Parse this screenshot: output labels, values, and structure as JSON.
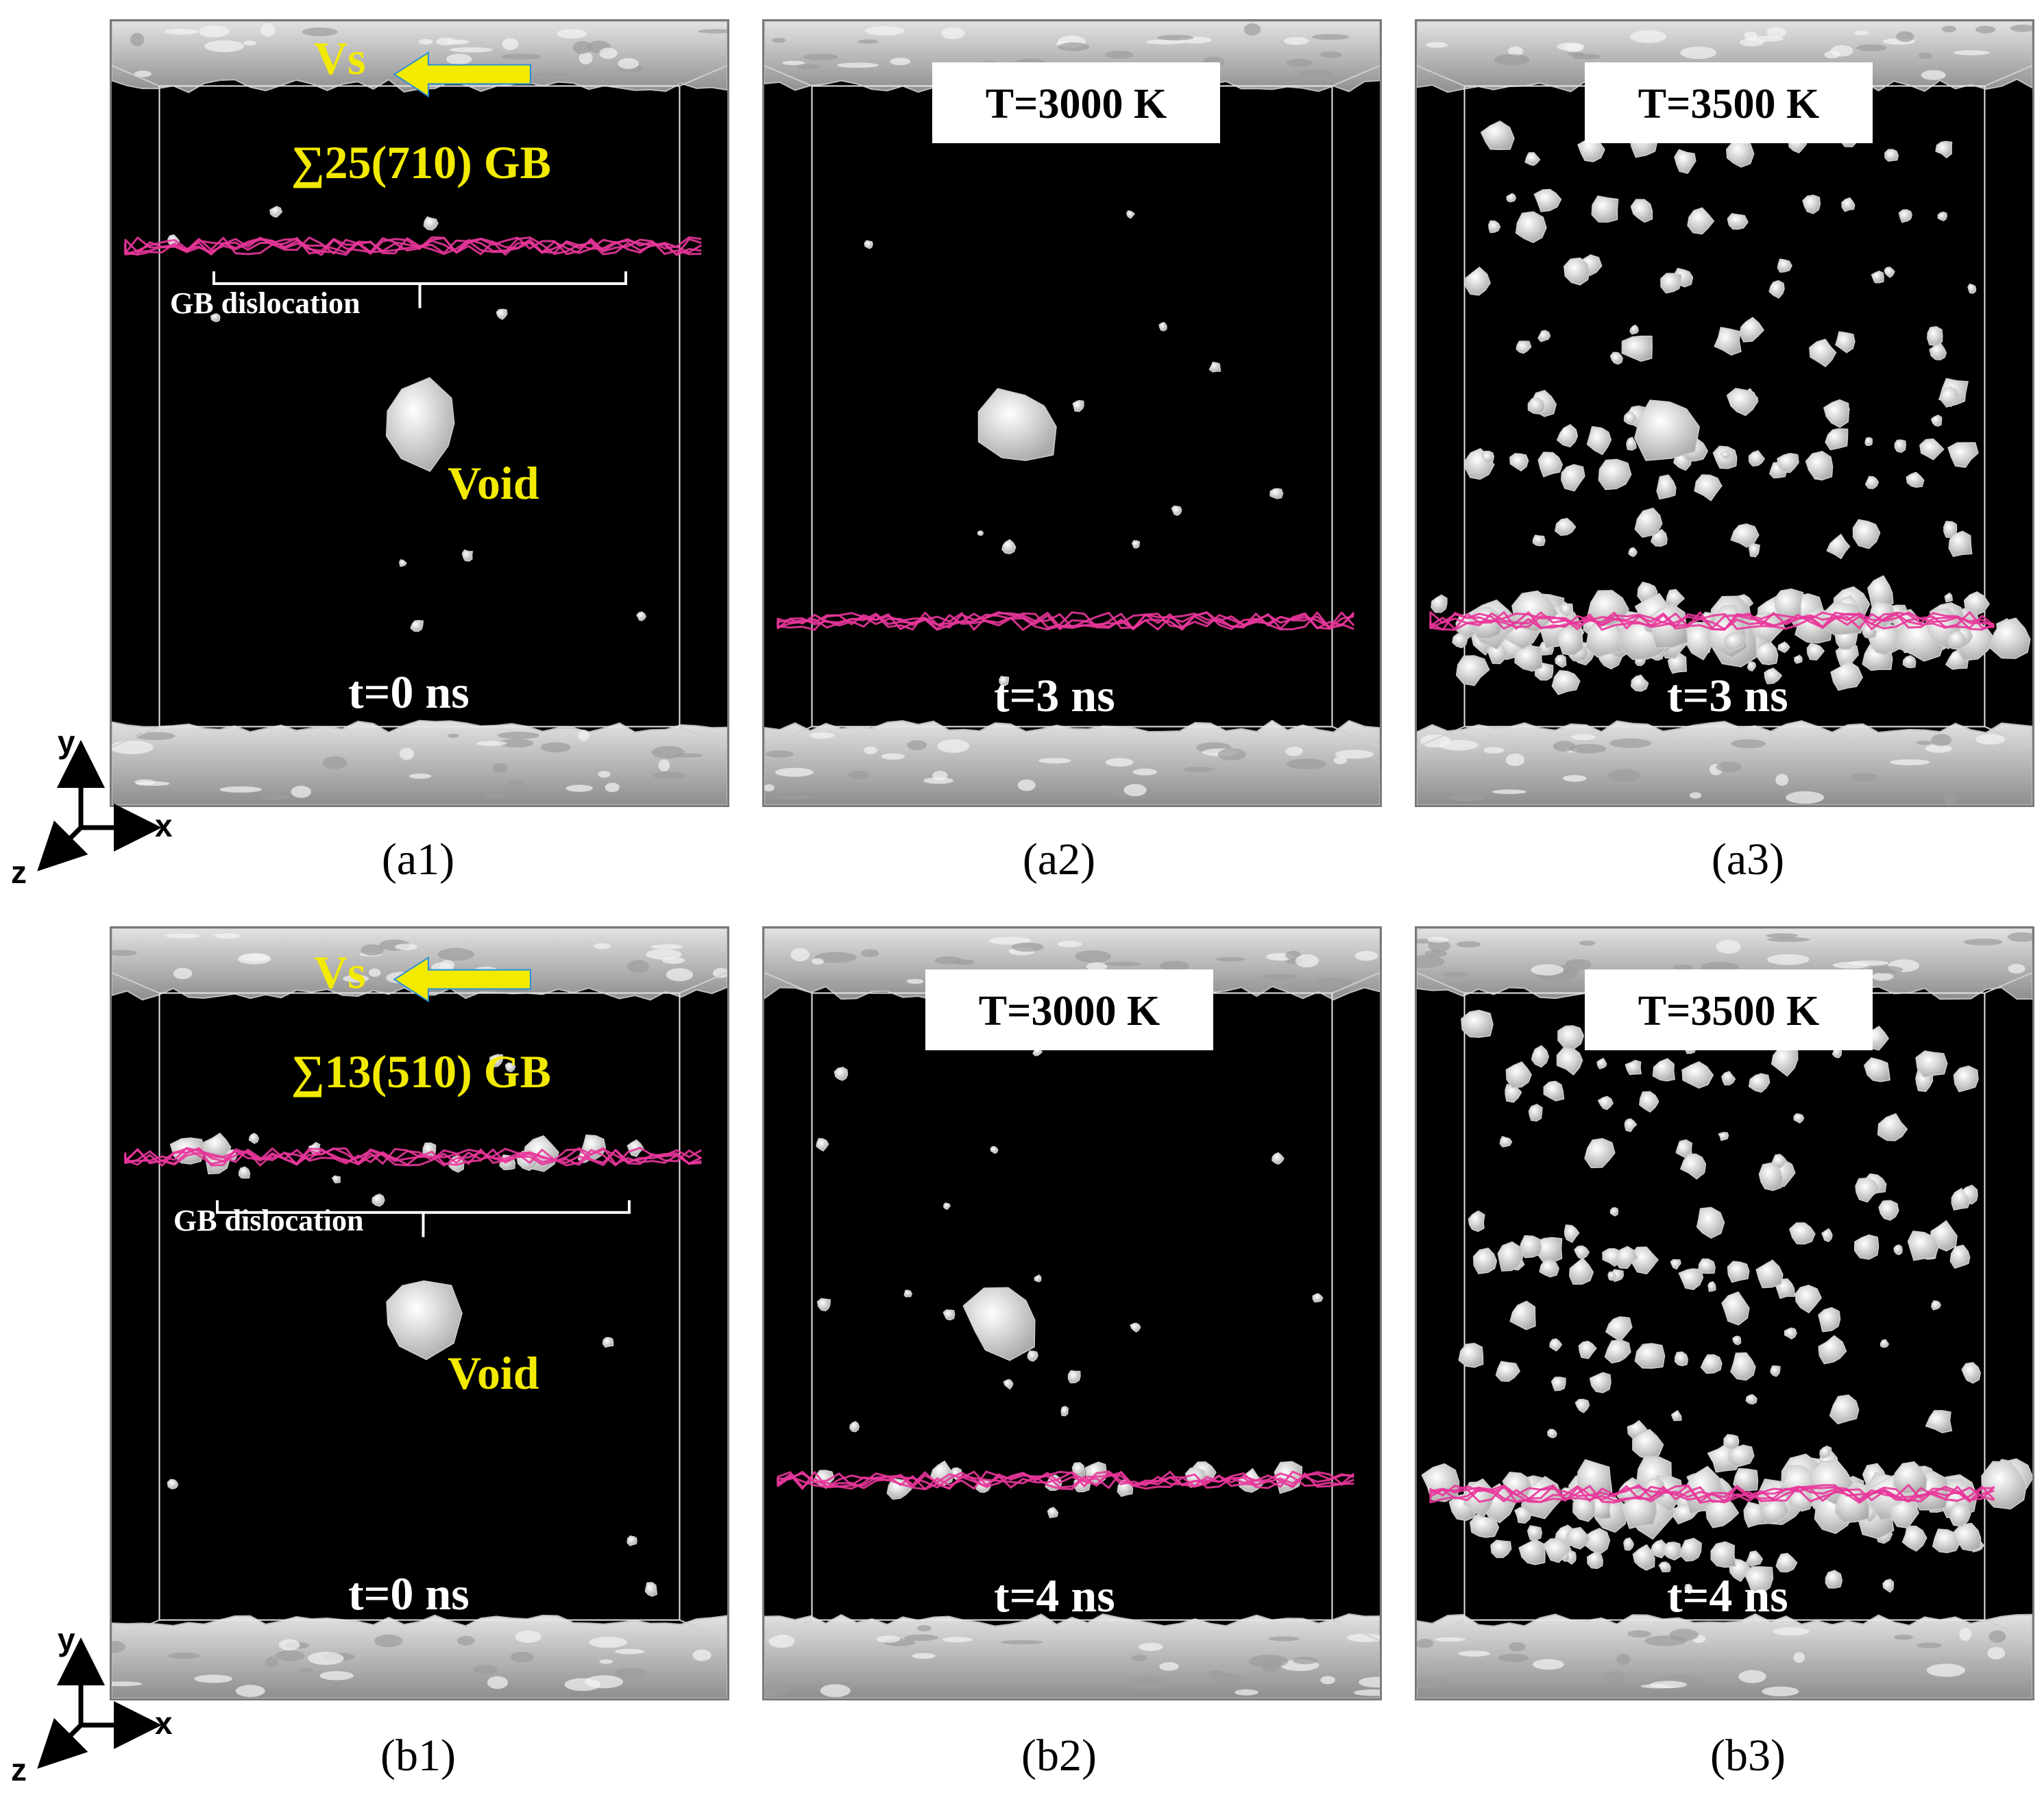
{
  "panels": {
    "a1": {
      "caption": "(a1)",
      "gb": "∑25(710) GB",
      "vs": "Vs",
      "gb_dislocation": "GB dislocation",
      "void": "Void",
      "time": "t=0 ns"
    },
    "a2": {
      "caption": "(a2)",
      "temperature": "T=3000 K",
      "time": "t=3 ns"
    },
    "a3": {
      "caption": "(a3)",
      "temperature": "T=3500 K",
      "time": "t=3 ns"
    },
    "b1": {
      "caption": "(b1)",
      "gb": "∑13(510) GB",
      "vs": "Vs",
      "gb_dislocation": "GB dislocation",
      "void": "Void",
      "time": "t=0 ns"
    },
    "b2": {
      "caption": "(b2)",
      "temperature": "T=3000 K",
      "time": "t=4 ns"
    },
    "b3": {
      "caption": "(b3)",
      "temperature": "T=3500 K",
      "time": "t=4 ns"
    }
  },
  "axes": {
    "x": "x",
    "y": "y",
    "z": "z"
  },
  "colors": {
    "arrow": "#f2ea00",
    "dislocation": "#e8369a",
    "surface": "#d8d8d8",
    "background": "#000000"
  }
}
